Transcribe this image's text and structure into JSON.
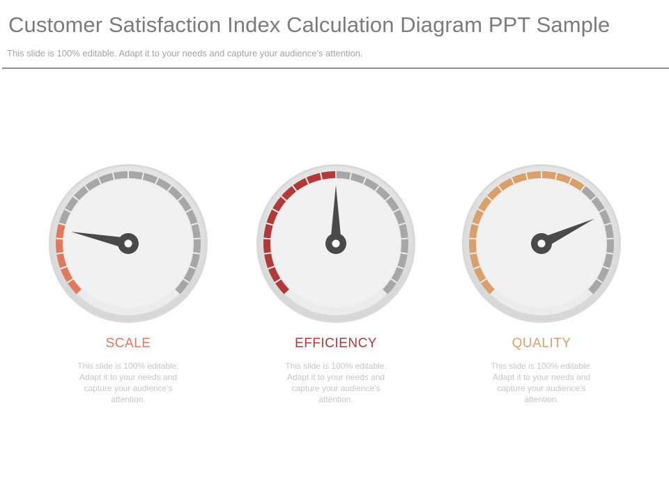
{
  "header": {
    "title": "Customer Satisfaction Index Calculation Diagram PPT Sample",
    "subtitle": "This slide is 100% editable. Adapt it to your needs and capture your audience's attention."
  },
  "gauges": [
    {
      "label": "SCALE",
      "description": "This slide is 100% editable. Adapt it to your needs and capture your audience's attention.",
      "color": "#e07a5f",
      "filled_segments": 5,
      "total_segments": 22,
      "needle_fraction": 0.21
    },
    {
      "label": "EFFICIENCY",
      "description": "This slide is 100% editable. Adapt it to your needs and capture your audience's attention.",
      "color": "#b03a3a",
      "filled_segments": 11,
      "total_segments": 22,
      "needle_fraction": 0.5
    },
    {
      "label": "QUALITY",
      "description": "This slide is 100% editable. Adapt it to your needs and capture your audience's attention.",
      "color": "#d9a06b",
      "filled_segments": 14,
      "total_segments": 22,
      "needle_fraction": 0.74
    }
  ],
  "colors": {
    "inactive_segment": "#a7a7a7",
    "needle": "#4a4a4a",
    "face": "#f1f1f1",
    "rim": "#dddddd"
  }
}
